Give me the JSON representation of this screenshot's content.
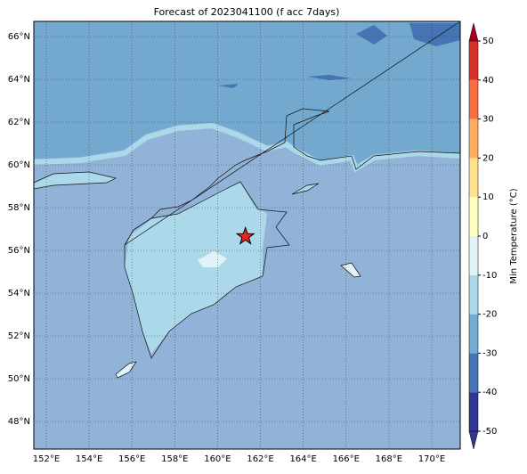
{
  "chart_data": {
    "type": "map",
    "title": "Forecast of 2023041100 (f acc 7days)",
    "xlim": [
      151.42,
      171.33
    ],
    "ylim": [
      46.71,
      66.71
    ],
    "xticks": [
      {
        "value": 152,
        "label": "152°E"
      },
      {
        "value": 154,
        "label": "154°E"
      },
      {
        "value": 156,
        "label": "156°E"
      },
      {
        "value": 158,
        "label": "158°E"
      },
      {
        "value": 160,
        "label": "160°E"
      },
      {
        "value": 162,
        "label": "162°E"
      },
      {
        "value": 164,
        "label": "164°E"
      },
      {
        "value": 166,
        "label": "166°E"
      },
      {
        "value": 168,
        "label": "168°E"
      },
      {
        "value": 170,
        "label": "170°E"
      }
    ],
    "yticks": [
      {
        "value": 48,
        "label": "48°N"
      },
      {
        "value": 50,
        "label": "50°N"
      },
      {
        "value": 52,
        "label": "52°N"
      },
      {
        "value": 54,
        "label": "54°N"
      },
      {
        "value": 56,
        "label": "56°N"
      },
      {
        "value": 58,
        "label": "58°N"
      },
      {
        "value": 60,
        "label": "60°N"
      },
      {
        "value": 62,
        "label": "62°N"
      },
      {
        "value": 64,
        "label": "64°N"
      },
      {
        "value": 66,
        "label": "66°N"
      }
    ],
    "grid": true,
    "marker": {
      "x": 161.3,
      "y": 56.65,
      "color": "#e8261e"
    },
    "colorbar": {
      "label": "Min Temperature (°C)",
      "lim": [
        -50,
        50
      ],
      "ticks": [
        -50,
        -40,
        -30,
        -20,
        -10,
        0,
        10,
        20,
        30,
        40,
        50
      ],
      "colors": [
        "#313695",
        "#4575b4",
        "#74add1",
        "#abd9e9",
        "#e0f3f8",
        "#ffffbf",
        "#fee090",
        "#fdae61",
        "#f46d43",
        "#d73027",
        "#a50026"
      ]
    }
  }
}
